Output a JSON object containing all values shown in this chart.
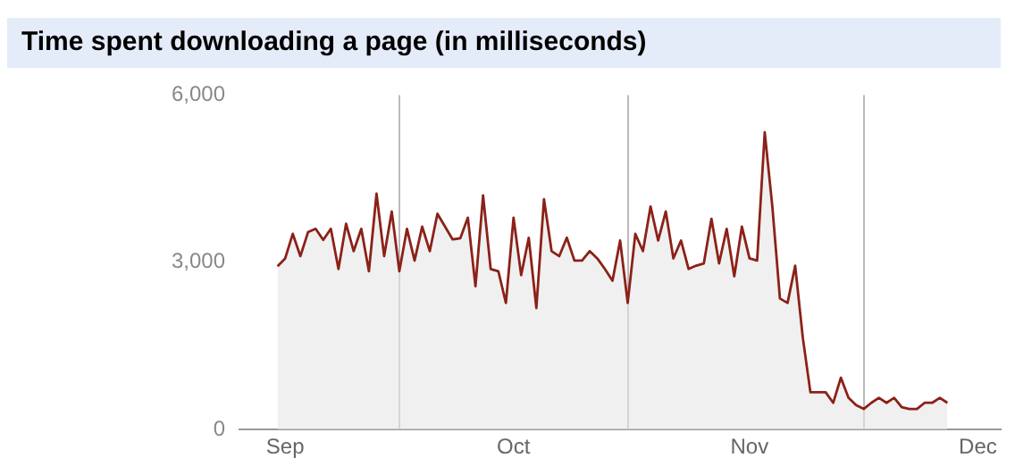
{
  "chart_data": {
    "type": "area",
    "title": "Time spent downloading a page (in milliseconds)",
    "x": [
      "--08-31",
      "--09-01",
      "--09-02",
      "--09-03",
      "--09-04",
      "--09-05",
      "--09-06",
      "--09-07",
      "--09-08",
      "--09-09",
      "--09-10",
      "--09-11",
      "--09-12",
      "--09-13",
      "--09-14",
      "--09-15",
      "--09-16",
      "--09-17",
      "--09-18",
      "--09-19",
      "--09-20",
      "--09-21",
      "--09-22",
      "--09-23",
      "--09-24",
      "--09-25",
      "--09-26",
      "--09-27",
      "--09-28",
      "--09-29",
      "--09-30",
      "--10-01",
      "--10-02",
      "--10-03",
      "--10-04",
      "--10-05",
      "--10-06",
      "--10-07",
      "--10-08",
      "--10-09",
      "--10-10",
      "--10-11",
      "--10-12",
      "--10-13",
      "--10-14",
      "--10-15",
      "--10-16",
      "--10-17",
      "--10-18",
      "--10-19",
      "--10-20",
      "--10-21",
      "--10-22",
      "--10-23",
      "--10-24",
      "--10-25",
      "--10-26",
      "--10-27",
      "--10-28",
      "--10-29",
      "--10-30",
      "--10-31",
      "--11-01",
      "--11-02",
      "--11-03",
      "--11-04",
      "--11-05",
      "--11-06",
      "--11-07",
      "--11-08",
      "--11-09",
      "--11-10",
      "--11-11",
      "--11-12",
      "--11-13",
      "--11-14",
      "--11-15",
      "--11-16",
      "--11-17",
      "--11-18",
      "--11-19",
      "--11-20",
      "--11-21",
      "--11-22",
      "--11-23",
      "--11-24",
      "--11-25",
      "--11-26",
      "--11-27"
    ],
    "series": [
      {
        "color": "#8b2118",
        "values": [
          2930,
          3070,
          3510,
          3110,
          3540,
          3600,
          3400,
          3600,
          2880,
          3690,
          3200,
          3600,
          2840,
          4230,
          3110,
          3910,
          2840,
          3600,
          3030,
          3640,
          3200,
          3870,
          3640,
          3410,
          3430,
          3800,
          2570,
          4200,
          2880,
          2840,
          2270,
          3800,
          2770,
          3440,
          2180,
          4130,
          3200,
          3110,
          3440,
          3030,
          3030,
          3200,
          3070,
          2880,
          2670,
          3390,
          2270,
          3510,
          3200,
          4000,
          3390,
          3910,
          3070,
          3390,
          2880,
          2940,
          2980,
          3780,
          2980,
          3600,
          2750,
          3640,
          3070,
          3030,
          5330,
          4000,
          2350,
          2270,
          2940,
          1650,
          670,
          670,
          670,
          480,
          930,
          570,
          440,
          370,
          480,
          570,
          480,
          570,
          400,
          370,
          370,
          480,
          480,
          570,
          480
        ]
      }
    ],
    "xlim": [
      "--08-26",
      "--12-04"
    ],
    "xticks": [
      {
        "value": "--09-01",
        "label": "Sep"
      },
      {
        "value": "--09-16",
        "label": null
      },
      {
        "value": "--10-01",
        "label": "Oct"
      },
      {
        "value": "--10-16",
        "label": null
      },
      {
        "value": "--11-01",
        "label": "Nov"
      },
      {
        "value": "--11-16",
        "label": null
      },
      {
        "value": "--12-01",
        "label": "Dec"
      }
    ],
    "ylim": [
      0,
      6000
    ],
    "yticks": [
      {
        "value": 0,
        "label": "0"
      },
      {
        "value": 3000,
        "label": "3,000"
      },
      {
        "value": 6000,
        "label": "6,000"
      }
    ],
    "grid": "x",
    "legend": false,
    "marker": "none",
    "line_style": "solid"
  }
}
